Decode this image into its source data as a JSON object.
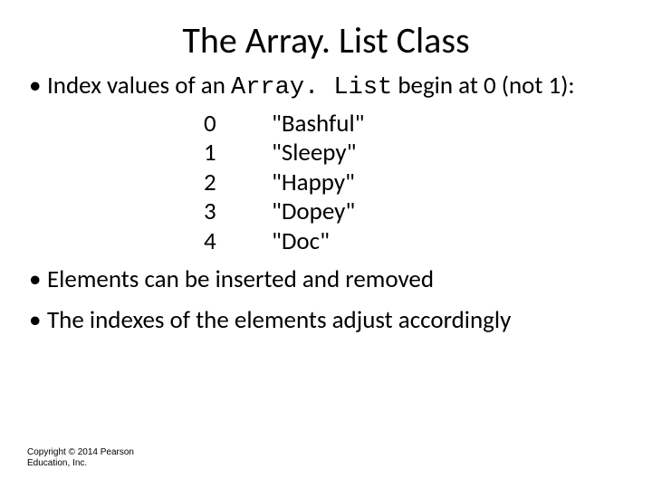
{
  "title": "The Array. List Class",
  "bullet1_prefix": "Index values of an ",
  "bullet1_code": "Array. List",
  "bullet1_suffix": " begin at 0 (not 1):",
  "index_rows": [
    {
      "index": "0",
      "value": "\"Bashful\""
    },
    {
      "index": "1",
      "value": "\"Sleepy\""
    },
    {
      "index": "2",
      "value": "\"Happy\""
    },
    {
      "index": "3",
      "value": "\"Dopey\""
    },
    {
      "index": "4",
      "value": "\"Doc\""
    }
  ],
  "bullet2": "Elements can be inserted and removed",
  "bullet3": "The indexes of the elements adjust accordingly",
  "copyright": "Copyright © 2014 Pearson Education, Inc.",
  "colors": {
    "background": "#ffffff",
    "text": "#000000"
  },
  "fontsizes": {
    "title": 40,
    "body": 27,
    "copyright": 10
  }
}
